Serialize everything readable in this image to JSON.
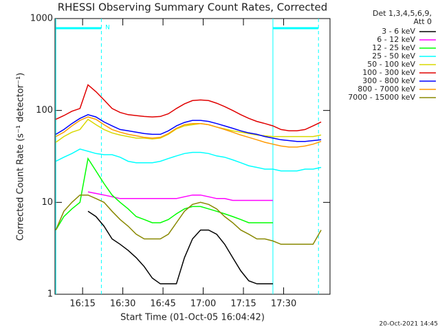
{
  "chart_data": {
    "type": "line",
    "title": "RHESSI Observing Summary Count Rates, Corrected",
    "x_label": "Start Time (01-Oct-05 16:04:42)",
    "y_label": "Corrected Count Rate (s⁻¹ detector⁻¹)",
    "legend_header": [
      "Det 1,3,4,5,6,9,",
      "Att 0"
    ],
    "legend": "right",
    "timestamp": "20-Oct-2021 14:45",
    "log_y": true,
    "xlim": [
      "16:04:42",
      "17:47:18"
    ],
    "xticks": [
      "16:15",
      "16:30",
      "16:45",
      "17:00",
      "17:15",
      "17:30"
    ],
    "ylim": [
      1,
      1000
    ],
    "yticks": [
      1,
      10,
      100,
      1000
    ],
    "flags": {
      "label": "N",
      "color": "#00ffff",
      "bars": [
        [
          "16:05",
          "16:22"
        ],
        [
          "17:26",
          "17:43"
        ]
      ],
      "solid": [
        "16:05",
        "17:26"
      ],
      "dashed": [
        "16:22",
        "17:43"
      ]
    },
    "x": [
      "16:05",
      "16:08",
      "16:11",
      "16:14",
      "16:17",
      "16:20",
      "16:23",
      "16:26",
      "16:29",
      "16:32",
      "16:35",
      "16:38",
      "16:41",
      "16:44",
      "16:47",
      "16:50",
      "16:53",
      "16:56",
      "16:59",
      "17:02",
      "17:05",
      "17:08",
      "17:11",
      "17:14",
      "17:17",
      "17:20",
      "17:23",
      "17:26",
      "17:29",
      "17:32",
      "17:35",
      "17:38",
      "17:41",
      "17:44"
    ],
    "series": [
      {
        "name": "3 - 6 keV",
        "color": "#000000",
        "values": [
          null,
          null,
          null,
          null,
          8,
          7,
          5.5,
          4,
          3.5,
          3,
          2.5,
          2,
          1.5,
          1.3,
          1.3,
          1.3,
          2.5,
          4,
          5,
          5,
          4.5,
          3.5,
          2.5,
          1.8,
          1.4,
          1.3,
          1.3,
          1.3,
          null,
          null,
          null,
          null,
          null,
          null
        ]
      },
      {
        "name": "6 - 12 keV",
        "color": "#ff00ff",
        "values": [
          null,
          null,
          null,
          null,
          13,
          12.5,
          12,
          11.5,
          11,
          11,
          11,
          11,
          11,
          11,
          11,
          11,
          11.5,
          12,
          12,
          11.5,
          11,
          11,
          10.5,
          10.5,
          10.5,
          10.5,
          10.5,
          10.5,
          null,
          null,
          null,
          null,
          null,
          null
        ]
      },
      {
        "name": "12 - 25 keV",
        "color": "#00ff00",
        "values": [
          5,
          7,
          8.5,
          10,
          30,
          22,
          16,
          12,
          10,
          8.5,
          7,
          6.5,
          6,
          6,
          6.5,
          7.5,
          8.5,
          9,
          9,
          8.5,
          8,
          7.5,
          7,
          6.5,
          6,
          6,
          6,
          6,
          null,
          null,
          null,
          null,
          null,
          6
        ]
      },
      {
        "name": "25 - 50 keV",
        "color": "#00ffff",
        "values": [
          28,
          31,
          34,
          38,
          36,
          34,
          33,
          33,
          31,
          28,
          27,
          27,
          27,
          28,
          30,
          32,
          34,
          35,
          35,
          34,
          32,
          31,
          29,
          27,
          25,
          24,
          23,
          23,
          22,
          22,
          22,
          23,
          23,
          24
        ]
      },
      {
        "name": "50 - 100 keV",
        "color": "#d8d800",
        "values": [
          45,
          52,
          58,
          62,
          80,
          70,
          62,
          57,
          54,
          52,
          50,
          50,
          49,
          50,
          55,
          63,
          68,
          70,
          72,
          70,
          66,
          63,
          60,
          58,
          56,
          54,
          53,
          52,
          52,
          52,
          52,
          52,
          52,
          54
        ]
      },
      {
        "name": "100 - 300 keV",
        "color": "#e00000",
        "values": [
          80,
          88,
          98,
          105,
          190,
          160,
          130,
          105,
          95,
          90,
          88,
          86,
          85,
          86,
          92,
          105,
          118,
          128,
          130,
          128,
          120,
          110,
          100,
          90,
          82,
          76,
          72,
          68,
          62,
          60,
          60,
          62,
          68,
          75
        ]
      },
      {
        "name": "300 - 800 keV",
        "color": "#0000ff",
        "values": [
          55,
          62,
          72,
          82,
          90,
          85,
          75,
          68,
          62,
          60,
          58,
          56,
          55,
          55,
          60,
          68,
          74,
          78,
          78,
          76,
          72,
          68,
          64,
          60,
          57,
          55,
          52,
          50,
          48,
          47,
          46,
          46,
          47,
          48
        ]
      },
      {
        "name": "800 - 7000 keV",
        "color": "#ff9900",
        "values": [
          52,
          58,
          68,
          78,
          85,
          80,
          70,
          62,
          58,
          55,
          53,
          51,
          50,
          51,
          56,
          64,
          70,
          72,
          72,
          70,
          66,
          62,
          58,
          54,
          51,
          48,
          45,
          43,
          41,
          40,
          40,
          41,
          43,
          46
        ]
      },
      {
        "name": "7000 - 15000 keV",
        "color": "#888800",
        "values": [
          5,
          8,
          10,
          12,
          12,
          11,
          10,
          8,
          6.5,
          5.5,
          4.5,
          4,
          4,
          4,
          4.5,
          6,
          8,
          9.5,
          10,
          9.5,
          8.5,
          7,
          6,
          5,
          4.5,
          4,
          4,
          3.8,
          3.5,
          3.5,
          3.5,
          3.5,
          3.5,
          5
        ]
      }
    ]
  }
}
